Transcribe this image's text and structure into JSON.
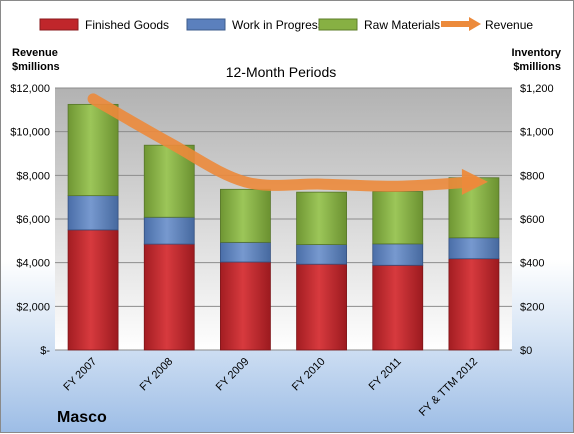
{
  "chart_data": {
    "type": "bar",
    "stacked": true,
    "title": "12-Month Periods",
    "company": "Masco",
    "left_axis_label": [
      "Revenue",
      "$millions"
    ],
    "right_axis_label": [
      "Inventory",
      "$millions"
    ],
    "categories": [
      "FY 2007",
      "FY 2008",
      "FY 2009",
      "FY 2010",
      "FY 2011",
      "FY & TTM 2012"
    ],
    "left_ylim": [
      0,
      12000
    ],
    "right_ylim": [
      0,
      1200
    ],
    "left_ticks": [
      "$-",
      "$2,000",
      "$4,000",
      "$6,000",
      "$8,000",
      "$10,000",
      "$12,000"
    ],
    "right_ticks": [
      "$0",
      "$200",
      "$400",
      "$600",
      "$800",
      "$1,000",
      "$1,200"
    ],
    "series": [
      {
        "name": "Finished Goods",
        "color": "#c0262b",
        "axis": "right",
        "values": [
          550,
          485,
          403,
          393,
          388,
          418
        ]
      },
      {
        "name": "Work in Progress",
        "color": "#5b80bd",
        "axis": "right",
        "values": [
          157,
          123,
          90,
          90,
          98,
          96
        ]
      },
      {
        "name": "Raw Materials",
        "color": "#87b043",
        "axis": "right",
        "values": [
          418,
          330,
          243,
          240,
          240,
          275
        ]
      }
    ],
    "line": {
      "name": "Revenue",
      "color": "#ec8a3b",
      "axis": "left",
      "values": [
        11500,
        9500,
        7700,
        7600,
        7500,
        7700
      ]
    },
    "grid": true
  }
}
